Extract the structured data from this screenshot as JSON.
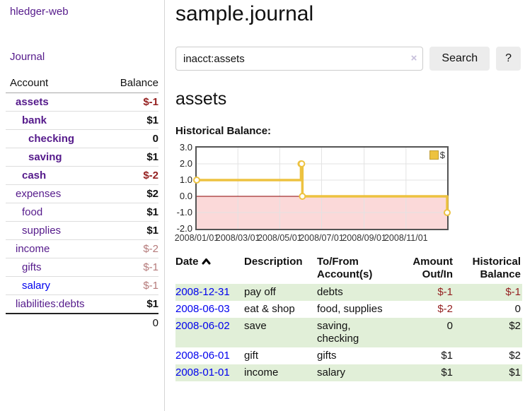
{
  "colors": {
    "link_purple": "#551a8b",
    "link_blue": "#0000ee",
    "negative_strong": "#941f1f",
    "negative_soft": "#b57a7a",
    "register_row_green": "#e1efd8",
    "chart_line_yellow": "#edc240",
    "chart_negative_region_pink": "#fbd9d9",
    "chart_zero_line_red": "#8b0000"
  },
  "sidebar": {
    "brand": "hledger-web",
    "nav": {
      "journal": "Journal"
    },
    "table": {
      "headers": {
        "account": "Account",
        "balance": "Balance"
      },
      "accounts": [
        {
          "name": "assets",
          "level": 1,
          "bold": true,
          "balance": "$-1",
          "balance_style": "neg-strong",
          "name_style": "purple"
        },
        {
          "name": "bank",
          "level": 2,
          "bold": true,
          "balance": "$1",
          "balance_style": "pos",
          "name_style": "purple"
        },
        {
          "name": "checking",
          "level": 3,
          "bold": true,
          "balance": "0",
          "balance_style": "pos",
          "name_style": "purple"
        },
        {
          "name": "saving",
          "level": 3,
          "bold": true,
          "balance": "$1",
          "balance_style": "pos",
          "name_style": "purple"
        },
        {
          "name": "cash",
          "level": 2,
          "bold": true,
          "balance": "$-2",
          "balance_style": "neg-strong",
          "name_style": "purple"
        },
        {
          "name": "expenses",
          "level": 1,
          "bold": false,
          "balance": "$2",
          "balance_style": "pos",
          "name_style": "purple"
        },
        {
          "name": "food",
          "level": 2,
          "bold": false,
          "balance": "$1",
          "balance_style": "pos",
          "name_style": "purple"
        },
        {
          "name": "supplies",
          "level": 2,
          "bold": false,
          "balance": "$1",
          "balance_style": "pos",
          "name_style": "purple"
        },
        {
          "name": "income",
          "level": 1,
          "bold": false,
          "balance": "$-2",
          "balance_style": "neg-soft",
          "name_style": "purple"
        },
        {
          "name": "gifts",
          "level": 2,
          "bold": false,
          "balance": "$-1",
          "balance_style": "neg-soft",
          "name_style": "purple"
        },
        {
          "name": "salary",
          "level": 2,
          "bold": false,
          "balance": "$-1",
          "balance_style": "neg-soft",
          "name_style": "blue"
        },
        {
          "name": "liabilities:debts",
          "level": 1,
          "bold": false,
          "balance": "$1",
          "balance_style": "pos",
          "name_style": "purple"
        }
      ],
      "total": "0"
    }
  },
  "main": {
    "title": "sample.journal",
    "search": {
      "value": "inacct:assets",
      "clear_label": "×",
      "button_label": "Search",
      "help_label": "?"
    },
    "account_heading": "assets",
    "chart_heading": "Historical Balance:"
  },
  "chart_data": {
    "type": "line",
    "step": true,
    "title": "Historical Balance",
    "legend": [
      {
        "label": "$",
        "color": "#edc240"
      }
    ],
    "x_type": "date",
    "points": [
      {
        "date": "2008-01-01",
        "value": 1
      },
      {
        "date": "2008-06-01",
        "value": 2
      },
      {
        "date": "2008-06-02",
        "value": 2
      },
      {
        "date": "2008-06-03",
        "value": 0
      },
      {
        "date": "2008-12-31",
        "value": -1
      }
    ],
    "xlim": [
      "2008-01-01",
      "2008-12-31"
    ],
    "ylim": [
      -2,
      3
    ],
    "y_ticks": [
      "3.0",
      "2.0",
      "1.0",
      "0.0",
      "-1.0",
      "-2.0"
    ],
    "x_ticks": [
      "2008/01/01",
      "2008/03/01",
      "2008/05/01",
      "2008/07/01",
      "2008/09/01",
      "2008/11/01"
    ],
    "grid": true,
    "negative_region_shaded": true,
    "legend_position": "top-right"
  },
  "register": {
    "headers": {
      "date": "Date",
      "description": "Description",
      "accounts": "To/From\nAccount(s)",
      "amount": "Amount\nOut/In",
      "balance": "Historical\nBalance"
    },
    "sort_icon": "chevron-up",
    "rows": [
      {
        "date": "2008-12-31",
        "description": "pay off",
        "accounts": "debts",
        "amount": "$-1",
        "amount_style": "neg-strong",
        "balance": "$-1",
        "balance_style": "neg-strong"
      },
      {
        "date": "2008-06-03",
        "description": "eat & shop",
        "accounts": "food, supplies",
        "amount": "$-2",
        "amount_style": "neg-strong",
        "balance": "0",
        "balance_style": "pos"
      },
      {
        "date": "2008-06-02",
        "description": "save",
        "accounts": "saving,\nchecking",
        "amount": "0",
        "amount_style": "pos",
        "balance": "$2",
        "balance_style": "pos"
      },
      {
        "date": "2008-06-01",
        "description": "gift",
        "accounts": "gifts",
        "amount": "$1",
        "amount_style": "pos",
        "balance": "$2",
        "balance_style": "pos"
      },
      {
        "date": "2008-01-01",
        "description": "income",
        "accounts": "salary",
        "amount": "$1",
        "amount_style": "pos",
        "balance": "$1",
        "balance_style": "pos"
      }
    ]
  }
}
